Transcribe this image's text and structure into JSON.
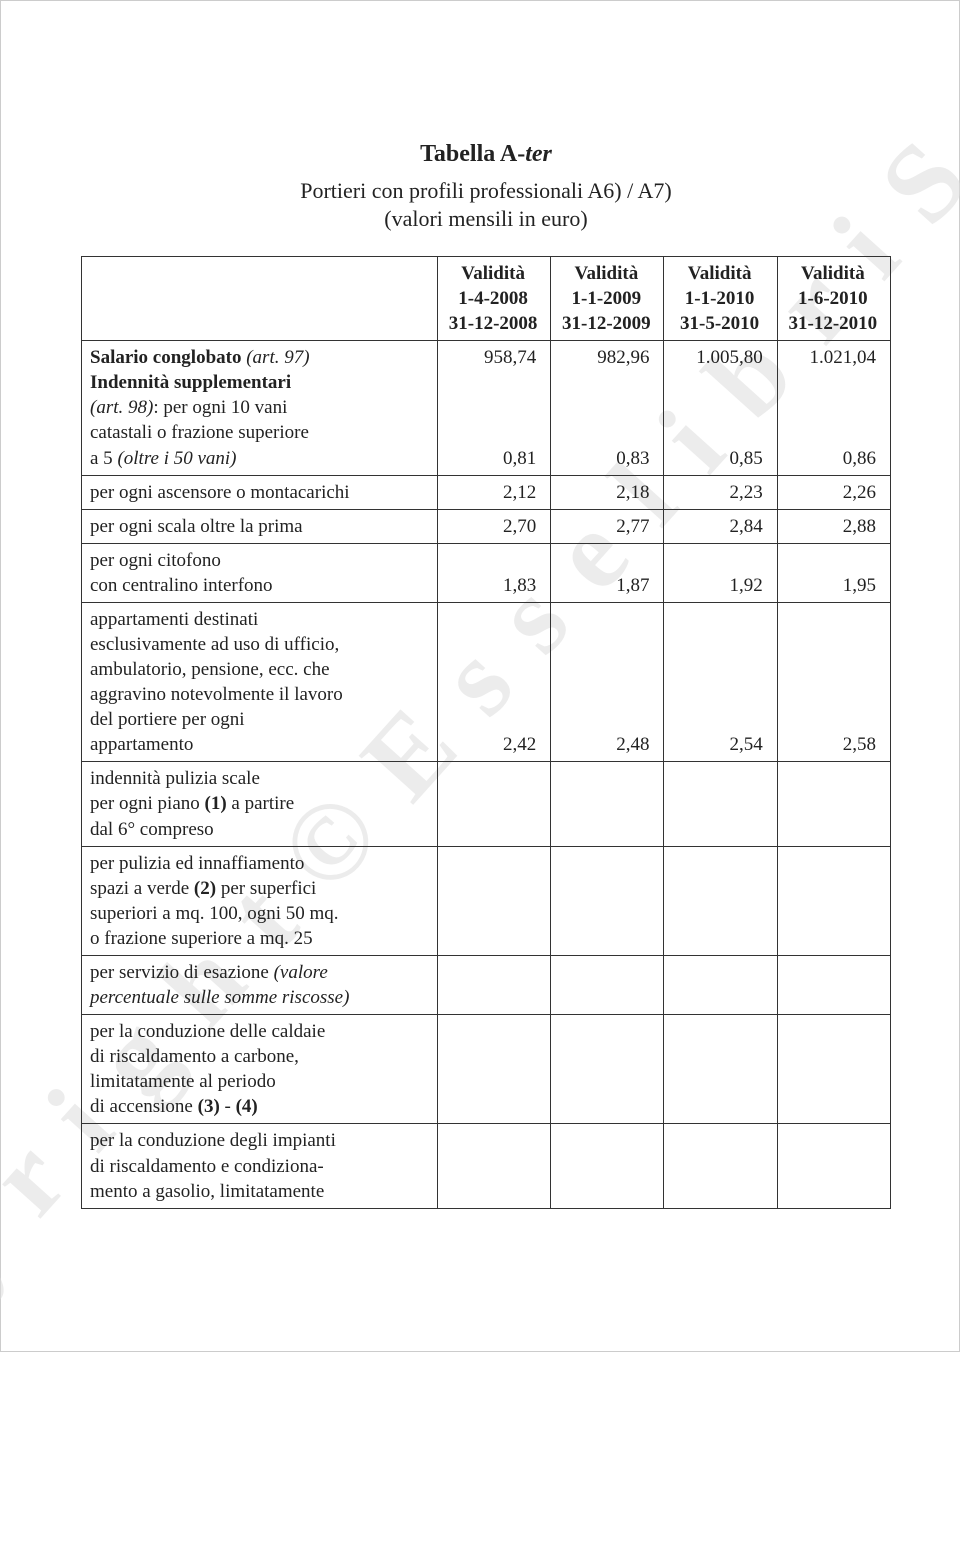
{
  "watermark_text": "C o p y r i g h t   ©   E s s e l i b r i   S . p . A .",
  "title_main": "Tabella A-",
  "title_ter": "ter",
  "subtitle_line1": "Portieri con profili professionali A6) / A7)",
  "subtitle_line2": "(valori mensili in euro)",
  "columns": [
    {
      "l1": "Validità",
      "l2": "1-4-2008",
      "l3": "31-12-2008"
    },
    {
      "l1": "Validità",
      "l2": "1-1-2009",
      "l3": "31-12-2009"
    },
    {
      "l1": "Validità",
      "l2": "1-1-2010",
      "l3": "31-5-2010"
    },
    {
      "l1": "Validità",
      "l2": "1-6-2010",
      "l3": "31-12-2010"
    }
  ],
  "rows": [
    {
      "html": "<span class='b'>Salario conglobato</span> <span class='it'>(art. 97)</span><br><span class='b'>Indennità supplementari</span><br><span class='it'>(art. 98)</span>: per ogni 10 vani<br>catastali o frazione superiore<br>a 5 <span class='it'>(oltre i 50 vani)</span>",
      "vals": [
        "958,74<br><br><br><br>0,81",
        "982,96<br><br><br><br>0,83",
        "1.005,80<br><br><br><br>0,85",
        "1.021,04<br><br><br><br>0,86"
      ]
    },
    {
      "html": "per ogni ascensore o montacarichi",
      "vals": [
        "2,12",
        "2,18",
        "2,23",
        "2,26"
      ]
    },
    {
      "html": "per ogni scala oltre la prima",
      "vals": [
        "2,70",
        "2,77",
        "2,84",
        "2,88"
      ]
    },
    {
      "html": "per ogni citofono<br>con centralino interfono",
      "vals": [
        "1,83",
        "1,87",
        "1,92",
        "1,95"
      ]
    },
    {
      "html": "appartamenti destinati<br>esclusivamente ad uso di ufficio,<br>ambulatorio, pensione, ecc. che<br>aggravino notevolmente il lavoro<br>del portiere per ogni<br>appartamento",
      "vals": [
        "2,42",
        "2,48",
        "2,54",
        "2,58"
      ]
    },
    {
      "html": "indennità pulizia scale<br>per ogni piano <span class='b'>(1)</span> a partire<br>dal 6° compreso",
      "vals": [
        "",
        "",
        "",
        ""
      ]
    },
    {
      "html": "per pulizia ed innaffiamento<br>spazi a verde <span class='b'>(2)</span> per superfici<br>superiori a mq. 100, ogni 50 mq.<br>o frazione superiore a mq. 25",
      "vals": [
        "",
        "",
        "",
        ""
      ]
    },
    {
      "html": "per servizio di esazione <span class='it'>(valore<br>percentuale sulle somme riscosse)</span>",
      "vals": [
        "",
        "",
        "",
        ""
      ]
    },
    {
      "html": "per la conduzione delle caldaie<br>di riscaldamento a carbone,<br>limitatamente al periodo<br>di accensione <span class='b'>(3)</span> - <span class='b'>(4)</span>",
      "vals": [
        "",
        "",
        "",
        ""
      ]
    },
    {
      "html": "per la conduzione degli impianti<br>di riscaldamento e condiziona-<br>mento a gasolio, limitatamente",
      "vals": [
        "",
        "",
        "",
        ""
      ]
    }
  ],
  "colors": {
    "border": "#333",
    "watermark": "#ddd",
    "text": "#222"
  }
}
